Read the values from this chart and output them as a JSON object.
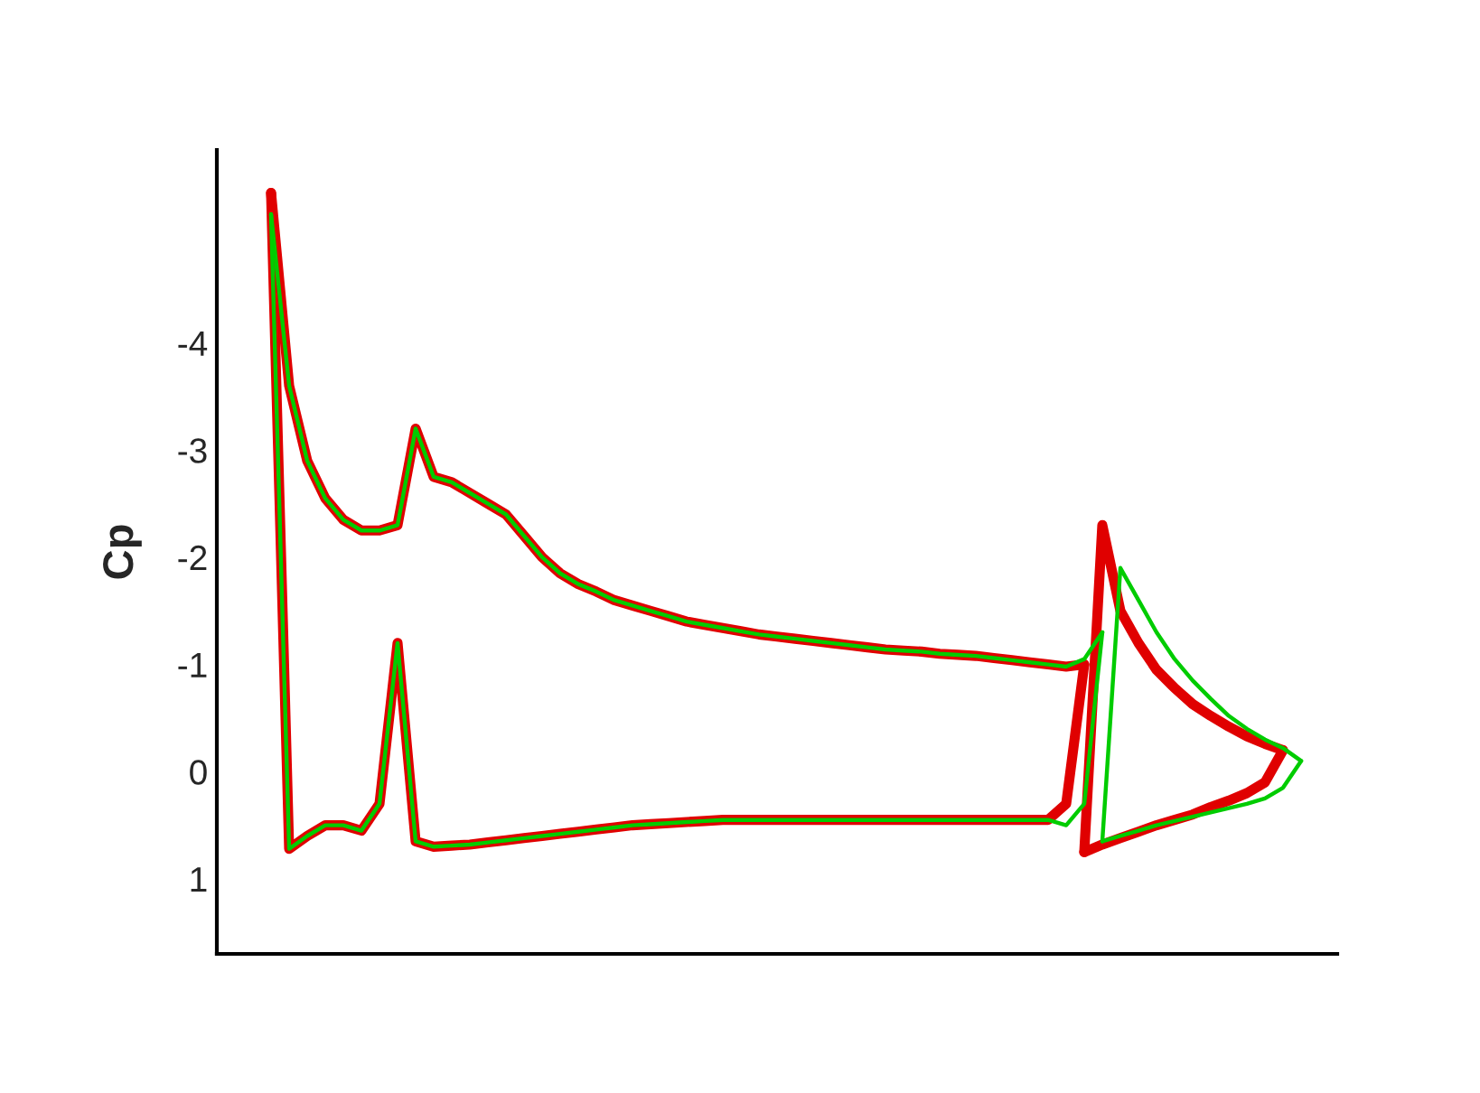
{
  "chart_data": {
    "type": "line",
    "ylabel": "Cp",
    "categories": [
      null,
      null,
      null,
      null,
      null,
      null,
      null,
      null,
      null,
      null,
      null,
      null,
      null,
      null,
      null,
      null,
      null,
      null,
      null,
      null,
      null,
      null,
      null,
      null,
      null,
      null,
      null,
      null,
      null,
      null,
      null,
      null,
      null,
      null,
      null,
      null,
      null,
      null,
      null,
      null,
      null,
      null,
      null,
      null,
      null,
      null,
      null,
      null,
      null,
      null,
      null,
      null,
      null,
      null,
      null,
      null,
      null,
      null
    ],
    "ylim": [
      1.7,
      -5.8
    ],
    "yticks": [
      -4,
      -3,
      -2,
      -1,
      0,
      1
    ],
    "tick_labels": "y",
    "grid": false,
    "legend": false,
    "line_style": "solid",
    "marker": "none",
    "series": [
      {
        "color": "#e00000",
        "values": [
          -5.4,
          -3.6,
          -2.9,
          -2.55,
          -2.35,
          -2.25,
          -2.25,
          -2.3,
          -3.2,
          -2.75,
          -2.7,
          -2.6,
          -2.5,
          -2.4,
          -2.2,
          -2.0,
          -1.85,
          -1.75,
          -1.68,
          -1.6,
          -1.55,
          -1.5,
          -1.45,
          -1.4,
          -1.37,
          -1.34,
          -1.31,
          -1.28,
          -1.26,
          -1.24,
          -1.22,
          -1.2,
          -1.18,
          -1.16,
          -1.14,
          -1.13,
          -1.12,
          -1.1,
          -1.09,
          -1.08,
          -1.06,
          -1.04,
          -1.02,
          -1.0,
          -0.98,
          -1.0,
          null,
          null,
          null,
          null,
          null,
          null,
          null,
          null,
          null,
          null,
          null,
          null
        ]
      },
      {
        "color": "#e00000",
        "values": [
          -5.4,
          0.72,
          0.6,
          0.5,
          0.5,
          0.55,
          0.3,
          -1.2,
          0.65,
          0.7,
          0.69,
          0.68,
          0.66,
          0.64,
          0.62,
          0.6,
          0.58,
          0.56,
          0.54,
          0.52,
          0.5,
          0.49,
          0.48,
          0.47,
          0.46,
          0.45,
          0.45,
          0.45,
          0.45,
          0.45,
          0.45,
          0.45,
          0.45,
          0.45,
          0.45,
          0.45,
          0.45,
          0.45,
          0.45,
          0.45,
          0.45,
          0.45,
          0.45,
          0.45,
          0.3,
          -1.0,
          null,
          null,
          null,
          null,
          null,
          null,
          null,
          null,
          null,
          null,
          null,
          null
        ]
      },
      {
        "color": "#e00000",
        "values": [
          null,
          null,
          null,
          null,
          null,
          null,
          null,
          null,
          null,
          null,
          null,
          null,
          null,
          null,
          null,
          null,
          null,
          null,
          null,
          null,
          null,
          null,
          null,
          null,
          null,
          null,
          null,
          null,
          null,
          null,
          null,
          null,
          null,
          null,
          null,
          null,
          null,
          null,
          null,
          null,
          null,
          null,
          null,
          null,
          null,
          0.75,
          -2.3,
          -1.5,
          -1.2,
          -0.95,
          -0.78,
          -0.63,
          -0.52,
          -0.42,
          -0.33,
          -0.26,
          -0.2,
          null
        ]
      },
      {
        "color": "#e00000",
        "values": [
          null,
          null,
          null,
          null,
          null,
          null,
          null,
          null,
          null,
          null,
          null,
          null,
          null,
          null,
          null,
          null,
          null,
          null,
          null,
          null,
          null,
          null,
          null,
          null,
          null,
          null,
          null,
          null,
          null,
          null,
          null,
          null,
          null,
          null,
          null,
          null,
          null,
          null,
          null,
          null,
          null,
          null,
          null,
          null,
          null,
          0.75,
          0.68,
          0.62,
          0.56,
          0.5,
          0.45,
          0.4,
          0.33,
          0.27,
          0.2,
          0.1,
          -0.2,
          null
        ]
      },
      {
        "color": "#00cc00",
        "values": [
          -5.2,
          -3.6,
          -2.9,
          -2.55,
          -2.35,
          -2.25,
          -2.25,
          -2.3,
          -3.2,
          -2.75,
          -2.7,
          -2.6,
          -2.5,
          -2.4,
          -2.2,
          -2.0,
          -1.85,
          -1.75,
          -1.68,
          -1.6,
          -1.55,
          -1.5,
          -1.45,
          -1.4,
          -1.37,
          -1.34,
          -1.31,
          -1.28,
          -1.26,
          -1.24,
          -1.22,
          -1.2,
          -1.18,
          -1.16,
          -1.14,
          -1.13,
          -1.12,
          -1.1,
          -1.09,
          -1.08,
          -1.06,
          -1.04,
          -1.02,
          -1.0,
          -0.98,
          -1.05,
          -1.3,
          null,
          null,
          null,
          null,
          null,
          null,
          null,
          null,
          null,
          null,
          null
        ]
      },
      {
        "color": "#00cc00",
        "values": [
          -5.2,
          0.72,
          0.6,
          0.5,
          0.5,
          0.55,
          0.3,
          -1.2,
          0.65,
          0.7,
          0.69,
          0.68,
          0.66,
          0.64,
          0.62,
          0.6,
          0.58,
          0.56,
          0.54,
          0.52,
          0.5,
          0.49,
          0.48,
          0.47,
          0.46,
          0.45,
          0.45,
          0.45,
          0.45,
          0.45,
          0.45,
          0.45,
          0.45,
          0.45,
          0.45,
          0.45,
          0.45,
          0.45,
          0.45,
          0.45,
          0.45,
          0.45,
          0.45,
          0.45,
          0.5,
          0.3,
          -1.3,
          null,
          null,
          null,
          null,
          null,
          null,
          null,
          null,
          null,
          null,
          null
        ]
      },
      {
        "color": "#00cc00",
        "values": [
          null,
          null,
          null,
          null,
          null,
          null,
          null,
          null,
          null,
          null,
          null,
          null,
          null,
          null,
          null,
          null,
          null,
          null,
          null,
          null,
          null,
          null,
          null,
          null,
          null,
          null,
          null,
          null,
          null,
          null,
          null,
          null,
          null,
          null,
          null,
          null,
          null,
          null,
          null,
          null,
          null,
          null,
          null,
          null,
          null,
          null,
          0.65,
          -1.9,
          -1.6,
          -1.3,
          -1.05,
          -0.85,
          -0.68,
          -0.52,
          -0.4,
          -0.3,
          -0.22,
          -0.1
        ]
      },
      {
        "color": "#00cc00",
        "values": [
          null,
          null,
          null,
          null,
          null,
          null,
          null,
          null,
          null,
          null,
          null,
          null,
          null,
          null,
          null,
          null,
          null,
          null,
          null,
          null,
          null,
          null,
          null,
          null,
          null,
          null,
          null,
          null,
          null,
          null,
          null,
          null,
          null,
          null,
          null,
          null,
          null,
          null,
          null,
          null,
          null,
          null,
          null,
          null,
          null,
          null,
          0.65,
          0.6,
          0.55,
          0.5,
          0.46,
          0.42,
          0.38,
          0.34,
          0.3,
          0.25,
          0.15,
          -0.1
        ]
      }
    ]
  }
}
